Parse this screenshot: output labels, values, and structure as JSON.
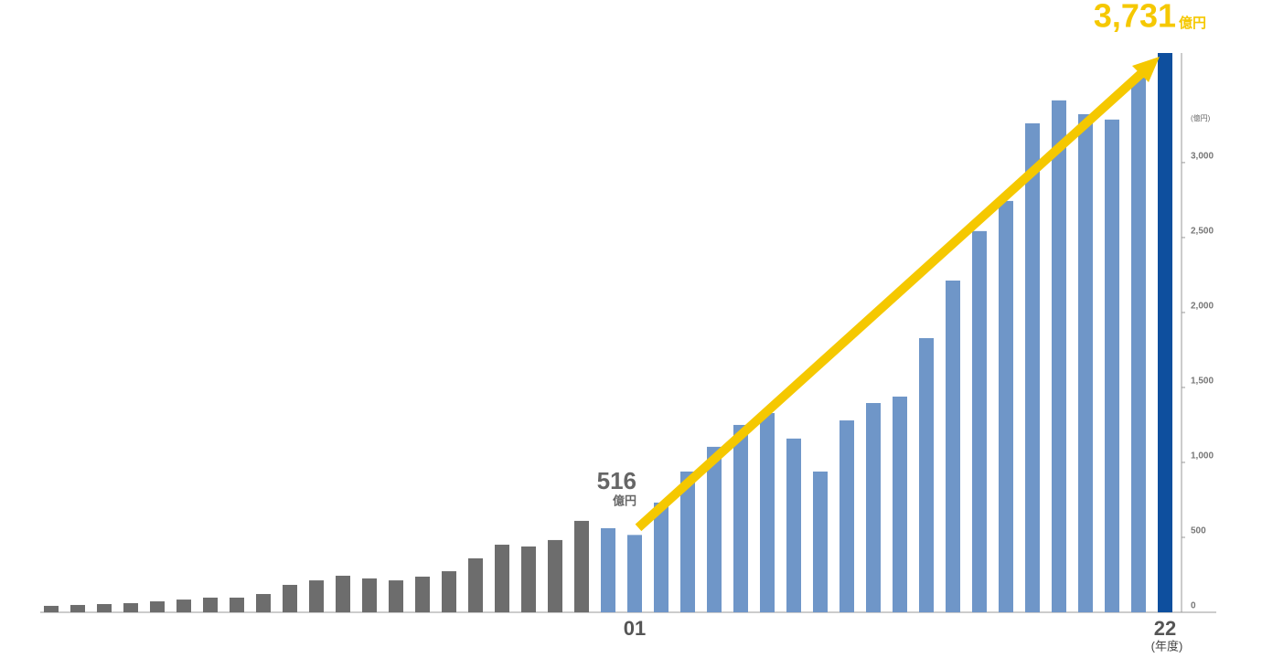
{
  "chart_data": {
    "type": "bar",
    "categories": [
      null,
      null,
      null,
      null,
      null,
      null,
      null,
      null,
      null,
      null,
      null,
      null,
      null,
      null,
      null,
      null,
      null,
      null,
      null,
      null,
      null,
      null,
      "01",
      null,
      null,
      null,
      null,
      null,
      null,
      null,
      null,
      null,
      null,
      null,
      null,
      null,
      null,
      null,
      null,
      null,
      null,
      null,
      "22"
    ],
    "values": [
      43,
      49,
      55,
      61,
      73,
      85,
      98,
      98,
      122,
      183,
      213,
      244,
      226,
      213,
      238,
      274,
      360,
      451,
      439,
      482,
      610,
      561,
      516,
      732,
      939,
      1104,
      1250,
      1329,
      1159,
      939,
      1280,
      1396,
      1439,
      1829,
      2213,
      2543,
      2744,
      3262,
      3415,
      3323,
      3287,
      3567,
      3731
    ],
    "value_labels": [
      null,
      null,
      null,
      null,
      null,
      null,
      null,
      null,
      null,
      null,
      null,
      null,
      null,
      null,
      null,
      null,
      null,
      null,
      null,
      null,
      null,
      null,
      "516",
      null,
      null,
      null,
      null,
      null,
      null,
      null,
      null,
      null,
      null,
      null,
      null,
      null,
      null,
      null,
      null,
      null,
      null,
      null,
      "3,731"
    ],
    "value_unit": "億円",
    "colors": [
      "#6d6d6d",
      "#6d6d6d",
      "#6d6d6d",
      "#6d6d6d",
      "#6d6d6d",
      "#6d6d6d",
      "#6d6d6d",
      "#6d6d6d",
      "#6d6d6d",
      "#6d6d6d",
      "#6d6d6d",
      "#6d6d6d",
      "#6d6d6d",
      "#6d6d6d",
      "#6d6d6d",
      "#6d6d6d",
      "#6d6d6d",
      "#6d6d6d",
      "#6d6d6d",
      "#6d6d6d",
      "#6d6d6d",
      "#6f96c8",
      "#6f96c8",
      "#6f96c8",
      "#6f96c8",
      "#6f96c8",
      "#6f96c8",
      "#6f96c8",
      "#6f96c8",
      "#6f96c8",
      "#6f96c8",
      "#6f96c8",
      "#6f96c8",
      "#6f96c8",
      "#6f96c8",
      "#6f96c8",
      "#6f96c8",
      "#6f96c8",
      "#6f96c8",
      "#6f96c8",
      "#6f96c8",
      "#6f96c8",
      "#0e4f9e"
    ],
    "y_unit": "(億円)",
    "x_unit": "(年度)",
    "ylim": [
      0,
      3731
    ],
    "yticks": [
      0,
      500,
      {
        "value": 1000,
        "label": "1,000"
      },
      {
        "value": 1500,
        "label": "1,500"
      },
      {
        "value": 2000,
        "label": "2,000"
      },
      {
        "value": 2500,
        "label": "2,500"
      },
      {
        "value": 3000,
        "label": "3,000"
      }
    ],
    "highlight_color": "#f5c800"
  }
}
